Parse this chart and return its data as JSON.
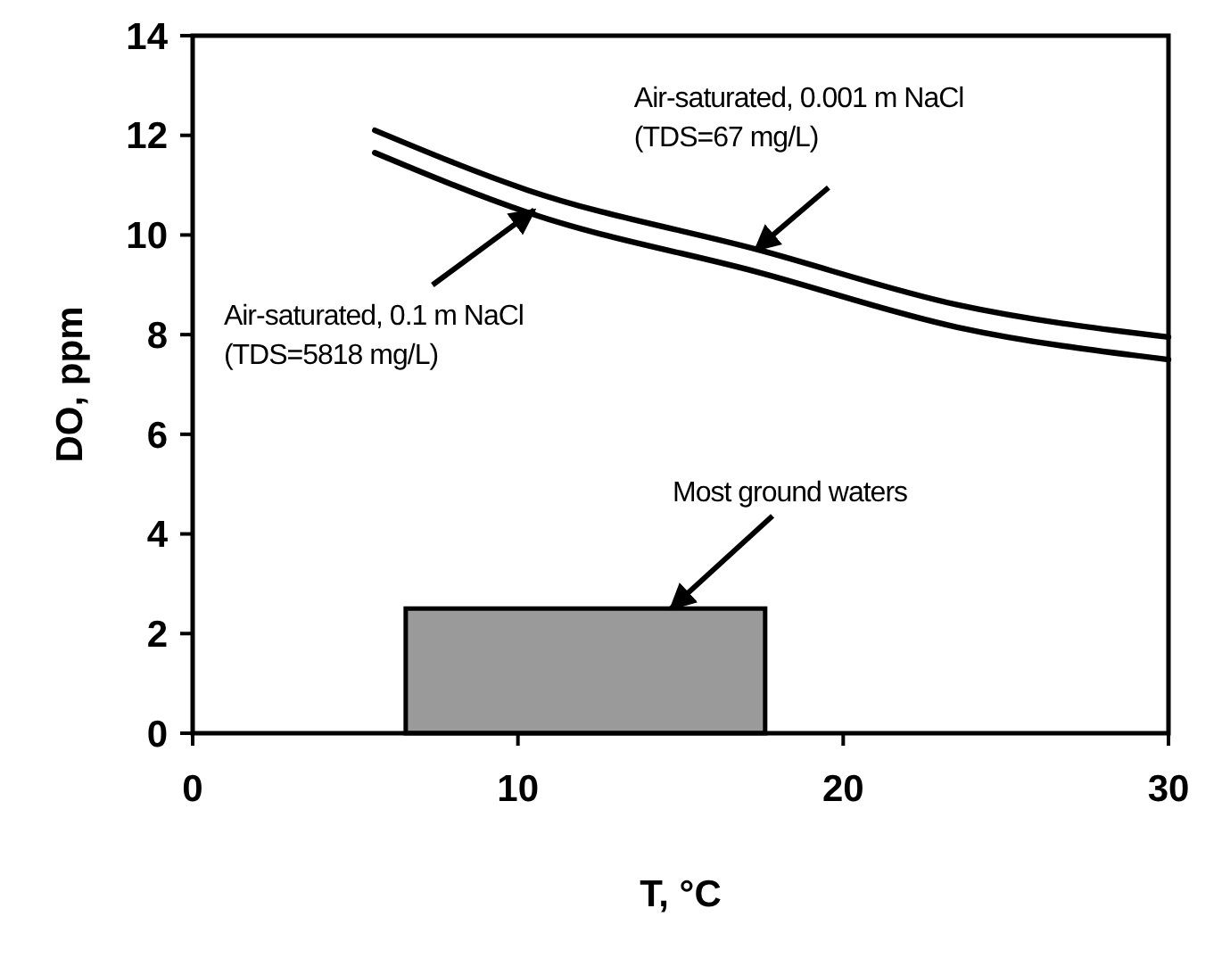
{
  "chart_data": {
    "type": "line",
    "xlabel": "T, °C",
    "ylabel": "DO, ppm",
    "xlim": [
      0,
      30
    ],
    "xticks": [
      0,
      10,
      20,
      30
    ],
    "ylim": [
      0,
      14
    ],
    "yticks": [
      0,
      2,
      4,
      6,
      8,
      10,
      12,
      14
    ],
    "grid": false,
    "marker": "none",
    "line_style": "solid",
    "series": [
      {
        "color": "#000000",
        "x": [
          5.6,
          10.3,
          17.4,
          23.5,
          30
        ],
        "values": [
          12.1,
          10.9,
          9.7,
          8.6,
          7.95
        ]
      },
      {
        "color": "#000000",
        "x": [
          5.6,
          10.3,
          17.4,
          23.5,
          30
        ],
        "values": [
          11.65,
          10.45,
          9.25,
          8.15,
          7.5
        ]
      },
      {
        "type": "area",
        "color": "#9a9a9a",
        "x": [
          6.55,
          17.6
        ],
        "values": [
          2.5,
          2.5
        ]
      }
    ],
    "annotations": [
      {
        "text": "Air-saturated, 0.001 m NaCl\n(TDS=67 mg/L)",
        "x": 17.3,
        "y": 9.7
      },
      {
        "text": "Air-saturated, 0.1 m NaCl\n(TDS=5818 mg/L)",
        "x": 10.5,
        "y": 10.5
      },
      {
        "text": "Most ground waters",
        "x": 14.7,
        "y": 2.5
      }
    ]
  }
}
